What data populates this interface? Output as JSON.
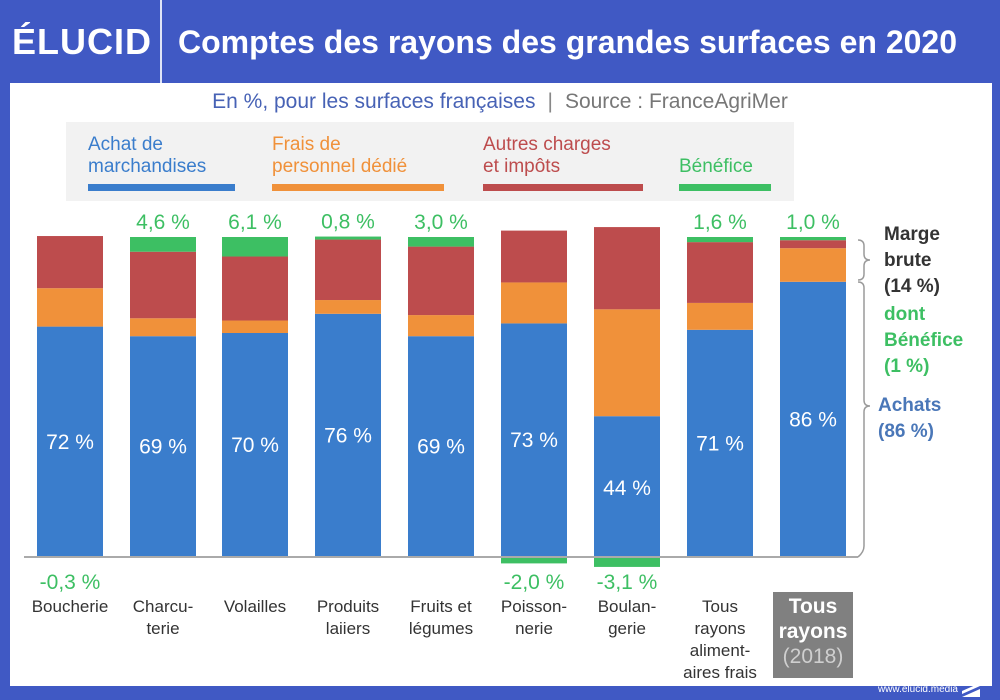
{
  "brand": {
    "logo": "ÉLUCID",
    "footer_url": "www.elucid.media"
  },
  "header": {
    "title": "Comptes des rayons des grandes surfaces en 2020"
  },
  "subtitle": {
    "main": "En %, pour les surfaces françaises",
    "separator": "|",
    "source": "Source : FranceAgriMer"
  },
  "legend": [
    {
      "label": "Achat de\nmarchandises",
      "color": "#3a7dcc"
    },
    {
      "label": "Frais de\npersonnel dédié",
      "color": "#f0913a"
    },
    {
      "label": "Autres charges\net impôts",
      "color": "#bd4c4d"
    },
    {
      "label": "Bénéfice",
      "color": "#3dbf63"
    }
  ],
  "annotations": {
    "marge_brute": [
      "Marge",
      "brute",
      "(14 %)"
    ],
    "dont_benefice": [
      "dont",
      "Bénéfice",
      "(1 %)"
    ],
    "achats": [
      "Achats",
      "(86 %)"
    ]
  },
  "colors": {
    "achat": "#3a7dcc",
    "personnel": "#f0913a",
    "autres": "#bd4c4d",
    "benefice": "#3dbf63",
    "benefice_text": "#3dbf63",
    "axis": "#aaaaaa",
    "marge_text": "#333333",
    "achats_text": "#4a77b8"
  },
  "chart_data": {
    "type": "bar",
    "stacked": true,
    "title": "Comptes des rayons des grandes surfaces en 2020",
    "subtitle": "En %, pour les surfaces françaises | Source : FranceAgriMer",
    "xlabel": "",
    "ylabel": "%",
    "ylim": [
      -4,
      104
    ],
    "grid": false,
    "legend_position": "top",
    "categories": [
      "Boucherie",
      "Charcu-\nterie",
      "Volailles",
      "Produits\nlaiiers",
      "Fruits et\nlégumes",
      "Poisson-\nnerie",
      "Boulan-\ngerie",
      "Tous\nrayons\naliment-\naires frais",
      "Tous\nrayons\n(2018)"
    ],
    "highlight_category_index": 8,
    "series": [
      {
        "name": "Achat de marchandises",
        "values": [
          72,
          69,
          70,
          76,
          69,
          73,
          44,
          71,
          86
        ],
        "labels": [
          "72 %",
          "69 %",
          "70 %",
          "76 %",
          "69 %",
          "73 %",
          "44 %",
          "71 %",
          "86 %"
        ]
      },
      {
        "name": "Frais de personnel dédié",
        "values": [
          12,
          5.6,
          3.9,
          4.3,
          6.6,
          12.8,
          33.4,
          8.4,
          10.5
        ]
      },
      {
        "name": "Autres charges et impôts",
        "values": [
          16.3,
          20.8,
          20,
          18.9,
          21.4,
          16.2,
          25.7,
          19,
          2.5
        ]
      },
      {
        "name": "Bénéfice",
        "values": [
          -0.3,
          4.6,
          6.1,
          0.8,
          3.0,
          -2.0,
          -3.1,
          1.6,
          1.0
        ],
        "labels": [
          "-0,3 %",
          "4,6 %",
          "6,1 %",
          "0,8 %",
          "3,0 %",
          "-2,0 %",
          "-3,1 %",
          "1,6 %",
          "1,0 %"
        ]
      }
    ]
  }
}
